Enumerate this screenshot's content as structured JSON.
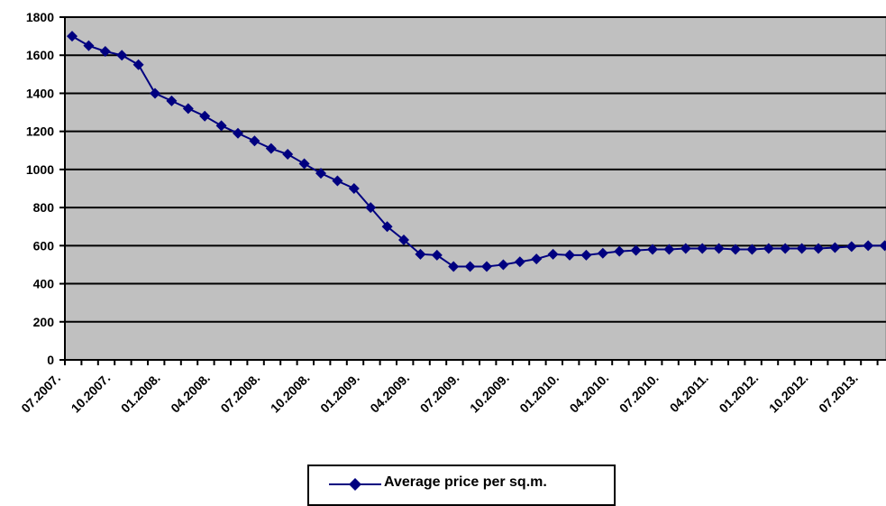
{
  "chart_data": {
    "type": "line",
    "x_tick_labels": [
      "07.2007.",
      "10.2007.",
      "01.2008.",
      "04.2008.",
      "07.2008.",
      "10.2008.",
      "01.2009.",
      "04.2009.",
      "07.2009.",
      "10.2009.",
      "01.2010.",
      "04.2010.",
      "07.2010.",
      "04.2011.",
      "01.2012.",
      "10.2012.",
      "07.2013."
    ],
    "yticks": [
      0,
      200,
      400,
      600,
      800,
      1000,
      1200,
      1400,
      1600,
      1800
    ],
    "ylim": [
      0,
      1800
    ],
    "grid": "horizontal",
    "plot_background": "#c0c0c0",
    "line_color": "#000080",
    "marker": "diamond",
    "legend_position": "bottom",
    "series": [
      {
        "name": "Average price per sq.m.",
        "values": [
          1700,
          1650,
          1620,
          1600,
          1550,
          1400,
          1360,
          1320,
          1280,
          1230,
          1190,
          1150,
          1110,
          1080,
          1030,
          980,
          940,
          900,
          800,
          700,
          630,
          555,
          550,
          490,
          490,
          490,
          500,
          515,
          530,
          555,
          550,
          550,
          560,
          570,
          575,
          580,
          580,
          585,
          585,
          585,
          580,
          580,
          585,
          585,
          585,
          585,
          590,
          595,
          600,
          600,
          600
        ]
      }
    ]
  }
}
